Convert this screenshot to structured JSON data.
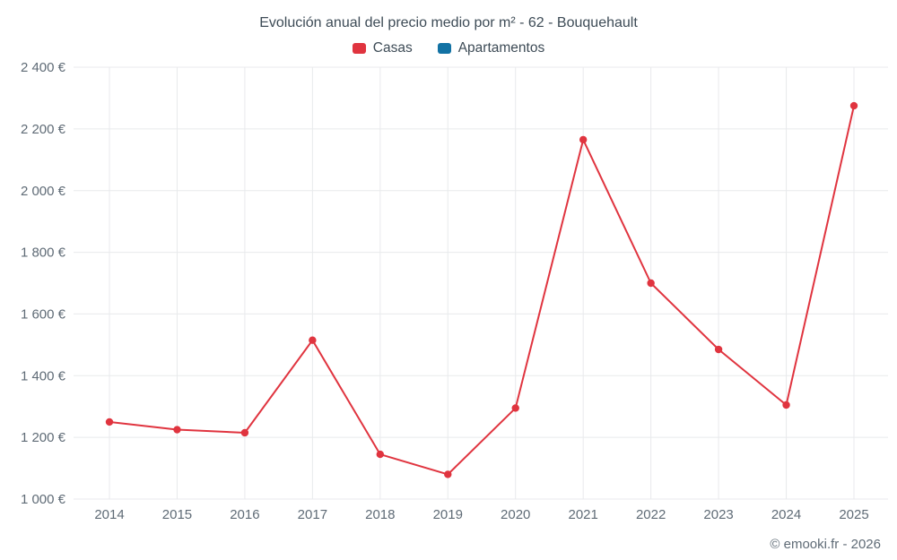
{
  "title": "Evolución anual del precio medio por m² - 62 - Bouquehault",
  "footer": "© emooki.fr - 2026",
  "legend": {
    "items": [
      {
        "label": "Casas",
        "color": "#e0343f"
      },
      {
        "label": "Apartamentos",
        "color": "#1272a4"
      }
    ]
  },
  "chart_data": {
    "type": "line",
    "title": "Evolución anual del precio medio por m² - 62 - Bouquehault",
    "x": [
      "2014",
      "2015",
      "2016",
      "2017",
      "2018",
      "2019",
      "2020",
      "2021",
      "2022",
      "2023",
      "2024",
      "2025"
    ],
    "series": [
      {
        "name": "Casas",
        "color": "#e0343f",
        "values": [
          1250,
          1225,
          1215,
          1515,
          1145,
          1080,
          1295,
          2165,
          1700,
          1485,
          1305,
          2275
        ]
      },
      {
        "name": "Apartamentos",
        "color": "#1272a4",
        "values": []
      }
    ],
    "xlabel": "",
    "ylabel": "",
    "ylim": [
      1000,
      2400
    ],
    "ytick_values": [
      1000,
      1200,
      1400,
      1600,
      1800,
      2000,
      2200,
      2400
    ],
    "ytick_labels": [
      "1 000 €",
      "1 200 €",
      "1 400 €",
      "1 600 €",
      "1 800 €",
      "2 000 €",
      "2 200 €",
      "2 400 €"
    ],
    "grid": true,
    "legend_position": "top",
    "marker": "circle",
    "grid_color": "#e8eaec"
  }
}
